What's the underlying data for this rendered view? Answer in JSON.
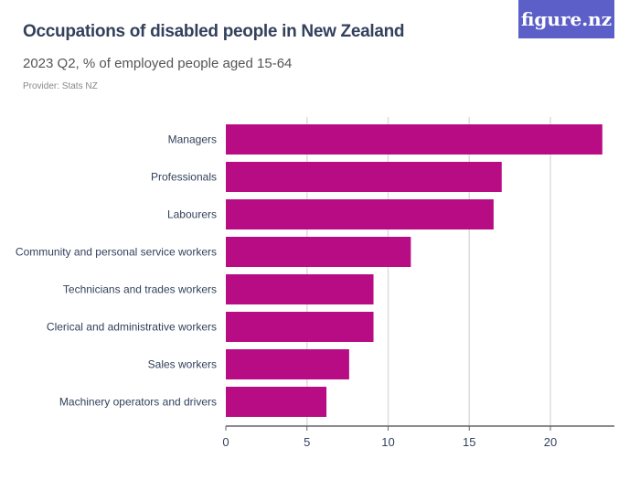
{
  "logo": "figure.nz",
  "chart_data": {
    "type": "bar",
    "orientation": "horizontal",
    "title": "Occupations of disabled people in New Zealand",
    "subtitle": "2023 Q2, % of employed people aged 15-64",
    "provider": "Provider: Stats NZ",
    "categories": [
      "Managers",
      "Professionals",
      "Labourers",
      "Community and personal service workers",
      "Technicians and trades workers",
      "Clerical and administrative workers",
      "Sales workers",
      "Machinery operators and drivers"
    ],
    "values": [
      23.2,
      17.0,
      16.5,
      11.4,
      9.1,
      9.1,
      7.6,
      6.2
    ],
    "xlim": [
      0,
      23.5
    ],
    "xticks": [
      "0",
      "5",
      "10",
      "15",
      "20"
    ],
    "grid": true,
    "bar_color": "#b80c85"
  }
}
